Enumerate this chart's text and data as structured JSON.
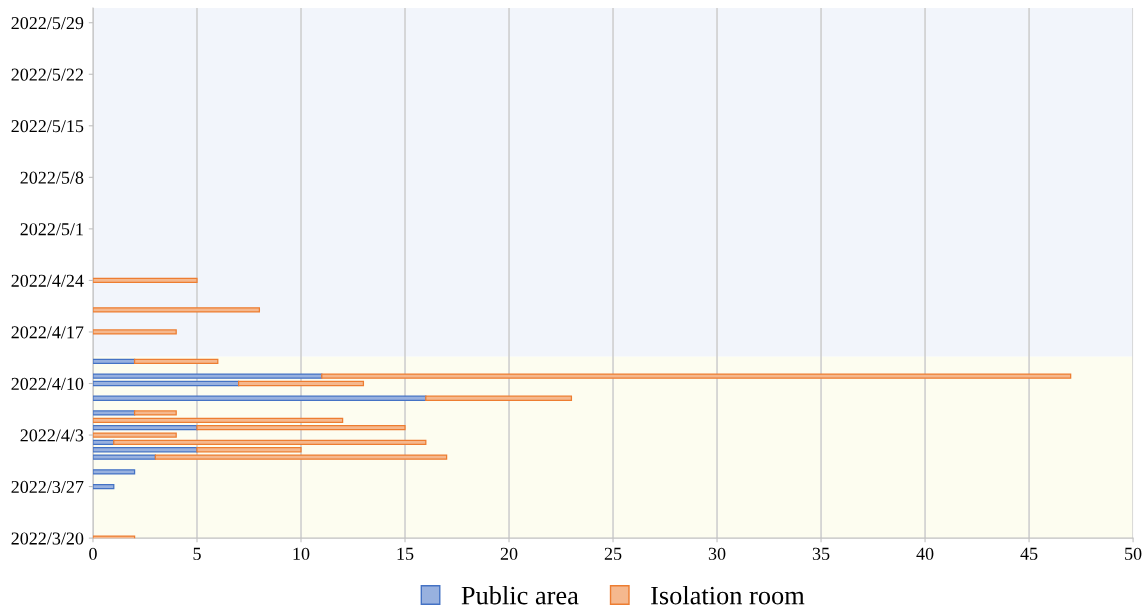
{
  "chart_data": {
    "type": "bar",
    "orientation": "horizontal",
    "stacked": true,
    "x": [
      "2022-03-20",
      "2022-03-27",
      "2022-03-29",
      "2022-03-31",
      "2022-04-01",
      "2022-04-02",
      "2022-04-03",
      "2022-04-04",
      "2022-04-05",
      "2022-04-06",
      "2022-04-08",
      "2022-04-10",
      "2022-04-11",
      "2022-04-13",
      "2022-04-17",
      "2022-04-20",
      "2022-04-24"
    ],
    "series": [
      {
        "name": "Public area",
        "color": "#4472c4",
        "values": [
          null,
          1,
          2,
          3,
          5,
          1,
          null,
          5,
          null,
          2,
          16,
          7,
          11,
          2,
          null,
          null,
          null
        ]
      },
      {
        "name": "Isolation room",
        "color": "#ed7d31",
        "values": [
          2,
          null,
          null,
          14,
          5,
          15,
          4,
          10,
          12,
          2,
          7,
          6,
          36,
          4,
          4,
          8,
          5
        ]
      }
    ],
    "xlim": [
      0,
      50
    ],
    "xticks": [
      0,
      5,
      10,
      15,
      20,
      25,
      30,
      35,
      40,
      45,
      50
    ],
    "ylim": [
      "2022-03-20",
      "2022-05-31"
    ],
    "yticks": [
      {
        "value": "2022-03-20",
        "label": "2022/3/20"
      },
      {
        "value": "2022-03-27",
        "label": "2022/3/27"
      },
      {
        "value": "2022-04-03",
        "label": "2022/4/3"
      },
      {
        "value": "2022-04-10",
        "label": "2022/4/10"
      },
      {
        "value": "2022-04-17",
        "label": "2022/4/17"
      },
      {
        "value": "2022-04-24",
        "label": "2022/4/24"
      },
      {
        "value": "2022-05-01",
        "label": "2022/5/1"
      },
      {
        "value": "2022-05-08",
        "label": "2022/5/8"
      },
      {
        "value": "2022-05-15",
        "label": "2022/5/15"
      },
      {
        "value": "2022-05-22",
        "label": "2022/5/22"
      },
      {
        "value": "2022-05-29",
        "label": "2022/5/29"
      }
    ],
    "bands": [
      {
        "axis": "y",
        "from": "2022-03-20",
        "to": "2022-04-13T16:00",
        "color": "#fdfdf0"
      },
      {
        "axis": "y",
        "from": "2022-04-13T16:00",
        "to": "2022-05-31",
        "color": "#f2f5fb"
      }
    ],
    "grid": "x",
    "legend": "bottom"
  }
}
